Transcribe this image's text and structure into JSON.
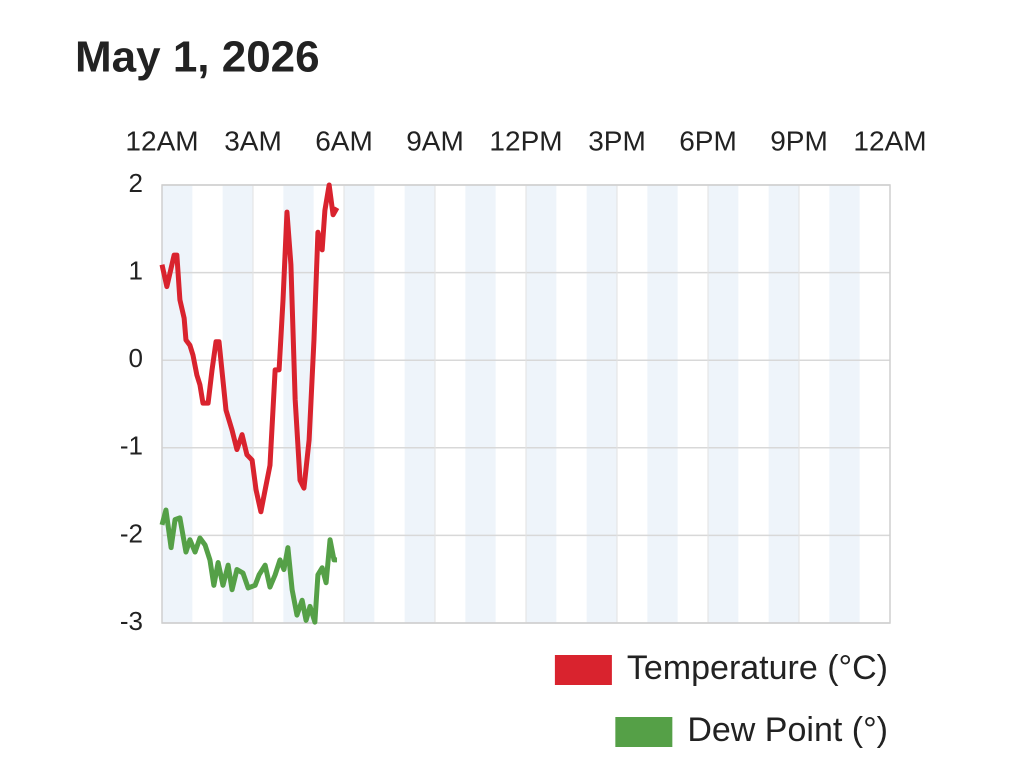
{
  "chart_data": {
    "type": "line",
    "title": "May 1, 2026",
    "xlim": [
      0,
      24
    ],
    "xticks": [
      {
        "value": 0,
        "label": "12AM"
      },
      {
        "value": 3,
        "label": "3AM"
      },
      {
        "value": 6,
        "label": "6AM"
      },
      {
        "value": 9,
        "label": "9AM"
      },
      {
        "value": 12,
        "label": "12PM"
      },
      {
        "value": 15,
        "label": "3PM"
      },
      {
        "value": 18,
        "label": "6PM"
      },
      {
        "value": 21,
        "label": "9PM"
      },
      {
        "value": 24,
        "label": "12AM"
      }
    ],
    "ylim": [
      -3,
      2
    ],
    "yticks": [
      2,
      1,
      0,
      -1,
      -2,
      -3
    ],
    "grid": true,
    "legend": "bottom-right",
    "series": [
      {
        "name": "Temperature (°C)",
        "color": "#d9232e",
        "x": [
          0,
          0.16,
          0.4,
          0.49,
          0.59,
          0.73,
          0.79,
          0.92,
          1.02,
          1.15,
          1.25,
          1.35,
          1.52,
          1.65,
          1.78,
          1.88,
          1.98,
          2.11,
          2.31,
          2.47,
          2.64,
          2.8,
          2.97,
          3.1,
          3.26,
          3.4,
          3.56,
          3.73,
          3.86,
          3.99,
          4.12,
          4.25,
          4.39,
          4.55,
          4.68,
          4.85,
          5.01,
          5.14,
          5.28,
          5.37,
          5.51,
          5.64,
          5.77
        ],
        "values": [
          1.09,
          0.84,
          1.2,
          1.2,
          0.69,
          0.48,
          0.23,
          0.17,
          0.06,
          -0.17,
          -0.28,
          -0.49,
          -0.49,
          -0.11,
          0.21,
          0.21,
          -0.13,
          -0.57,
          -0.8,
          -1.02,
          -0.85,
          -1.08,
          -1.14,
          -1.48,
          -1.73,
          -1.48,
          -1.2,
          -0.11,
          -0.11,
          0.69,
          1.69,
          1.09,
          -0.45,
          -1.37,
          -1.46,
          -0.91,
          0.23,
          1.46,
          1.26,
          1.71,
          2.0,
          1.66,
          1.74
        ]
      },
      {
        "name": "Dew Point (°)",
        "color": "#55a047",
        "x": [
          0,
          0.13,
          0.3,
          0.43,
          0.59,
          0.79,
          0.92,
          1.09,
          1.25,
          1.42,
          1.58,
          1.71,
          1.85,
          2.01,
          2.18,
          2.31,
          2.47,
          2.67,
          2.84,
          3.07,
          3.2,
          3.4,
          3.56,
          3.73,
          3.89,
          4.02,
          4.15,
          4.29,
          4.45,
          4.62,
          4.75,
          4.88,
          5.04,
          5.14,
          5.28,
          5.41,
          5.54,
          5.67,
          5.77
        ],
        "values": [
          -1.88,
          -1.71,
          -2.14,
          -1.82,
          -1.8,
          -2.19,
          -2.05,
          -2.19,
          -2.03,
          -2.11,
          -2.28,
          -2.57,
          -2.31,
          -2.57,
          -2.34,
          -2.62,
          -2.39,
          -2.43,
          -2.6,
          -2.57,
          -2.45,
          -2.34,
          -2.59,
          -2.45,
          -2.28,
          -2.39,
          -2.14,
          -2.62,
          -2.91,
          -2.74,
          -2.97,
          -2.81,
          -2.99,
          -2.45,
          -2.37,
          -2.54,
          -2.05,
          -2.28,
          -2.28
        ]
      }
    ]
  }
}
